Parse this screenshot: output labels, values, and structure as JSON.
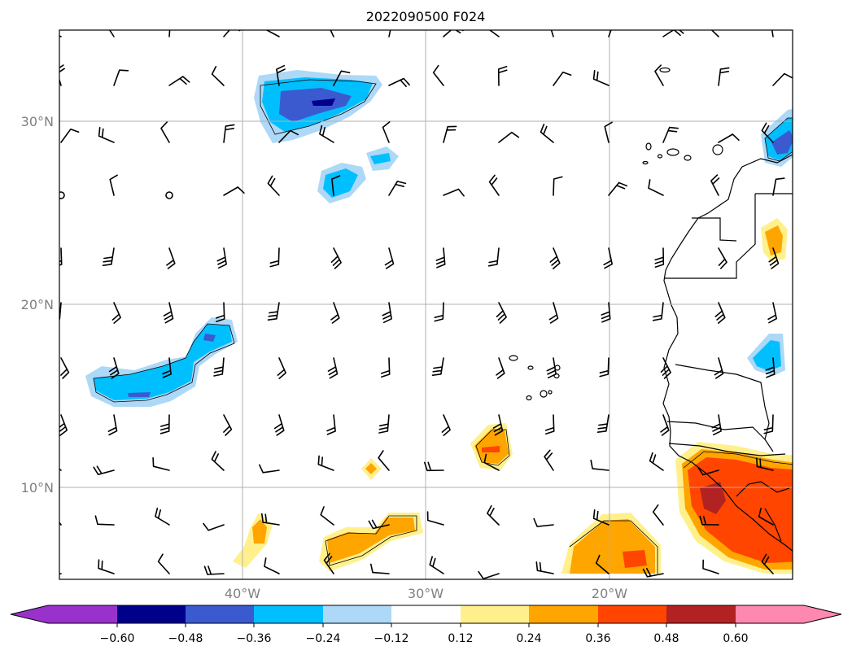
{
  "title": "2022090500 F024",
  "map": {
    "lon_range": [
      -50,
      -10
    ],
    "lat_range": [
      5,
      35
    ],
    "lon_labels": [
      "40°W",
      "30°W",
      "20°W"
    ],
    "lat_labels": [
      "30°N",
      "20°N",
      "10°N"
    ],
    "gridline_color": "#b0b0b0"
  },
  "colorbar": {
    "extend": "both",
    "colors": [
      "#9932cc",
      "#00008b",
      "#3b5ad0",
      "#00bfff",
      "#add8f7",
      "#ffffff",
      "#fff08c",
      "#ffa500",
      "#ff4500",
      "#b22222",
      "#ff88b0"
    ],
    "tick_labels": [
      "−0.60",
      "−0.48",
      "−0.36",
      "−0.24",
      "−0.12",
      "0.12",
      "0.24",
      "0.36",
      "0.48",
      "0.60"
    ]
  }
}
